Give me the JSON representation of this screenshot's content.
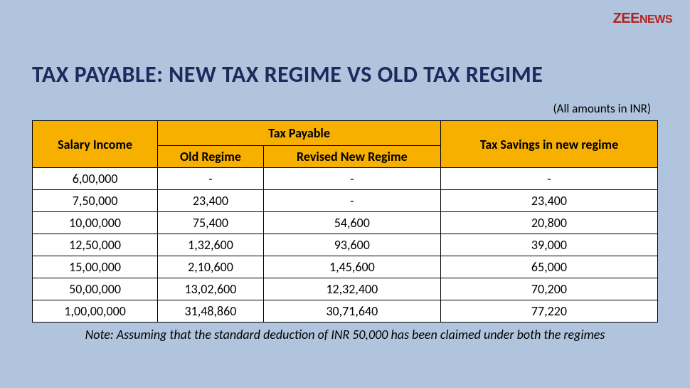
{
  "logo": {
    "zee": "ZEE",
    "news": "NEWS"
  },
  "title": "TAX PAYABLE: NEW TAX REGIME VS OLD TAX REGIME",
  "subtitle": "(All amounts in INR)",
  "table": {
    "headers": {
      "salary": "Salary Income",
      "tax_payable": "Tax Payable",
      "old_regime": "Old Regime",
      "revised_new": "Revised New Regime",
      "savings": "Tax Savings in new regime"
    },
    "rows": [
      {
        "salary": "6,00,000",
        "old": "-",
        "new": "-",
        "savings": "-"
      },
      {
        "salary": "7,50,000",
        "old": "23,400",
        "new": "-",
        "savings": "23,400"
      },
      {
        "salary": "10,00,000",
        "old": "75,400",
        "new": "54,600",
        "savings": "20,800"
      },
      {
        "salary": "12,50,000",
        "old": "1,32,600",
        "new": "93,600",
        "savings": "39,000"
      },
      {
        "salary": "15,00,000",
        "old": "2,10,600",
        "new": "1,45,600",
        "savings": "65,000"
      },
      {
        "salary": "50,00,000",
        "old": "13,02,600",
        "new": "12,32,400",
        "savings": "70,200"
      },
      {
        "salary": "1,00,00,000",
        "old": "31,48,860",
        "new": "30,71,640",
        "savings": "77,220"
      }
    ]
  },
  "note": "Note: Assuming that the standard deduction of INR 50,000 has been claimed under both the regimes",
  "colors": {
    "background": "#b0c4de",
    "header_bg": "#f7b000",
    "title_color": "#1a2b5c",
    "logo_color": "#b22222",
    "cell_bg": "#ffffff",
    "border": "#000000"
  }
}
